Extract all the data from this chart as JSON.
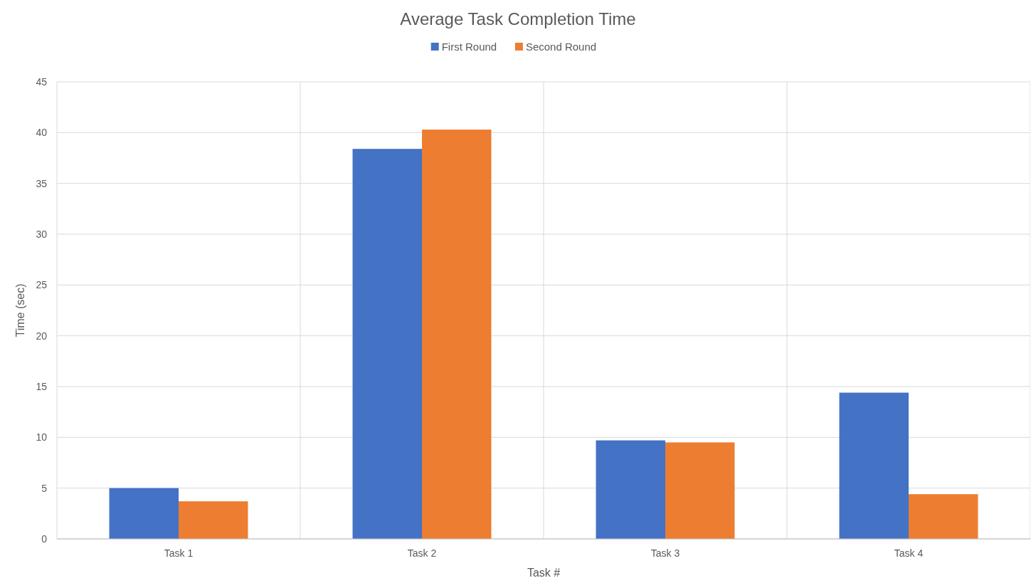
{
  "chart_data": {
    "type": "bar",
    "title": "Average Task Completion Time",
    "xlabel": "Task #",
    "ylabel": "Time (sec)",
    "categories": [
      "Task 1",
      "Task 2",
      "Task 3",
      "Task 4"
    ],
    "series": [
      {
        "name": "First Round",
        "color": "#4472c4",
        "values": [
          5.0,
          38.4,
          9.7,
          14.4
        ]
      },
      {
        "name": "Second Round",
        "color": "#ed7d31",
        "values": [
          3.7,
          40.3,
          9.5,
          4.4
        ]
      }
    ],
    "ylim": [
      0,
      45
    ],
    "yticks": [
      0,
      5,
      10,
      15,
      20,
      25,
      30,
      35,
      40,
      45
    ],
    "grid": true,
    "legend": "top"
  }
}
